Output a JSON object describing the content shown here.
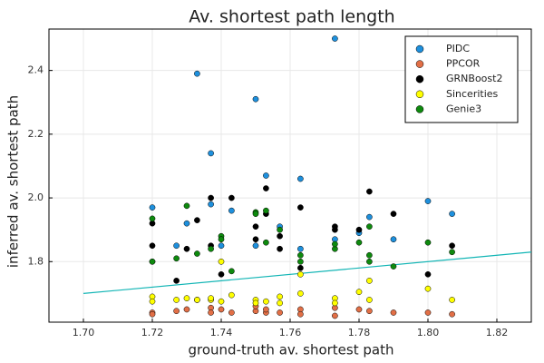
{
  "chart_data": {
    "type": "scatter",
    "title": "Av. shortest path length",
    "xlabel": "ground-truth av. shortest path",
    "ylabel": "inferred av. shortest path",
    "xlim": [
      1.69,
      1.83
    ],
    "ylim": [
      1.61,
      2.53
    ],
    "xticks": [
      1.7,
      1.72,
      1.74,
      1.76,
      1.78,
      1.8,
      1.82
    ],
    "xtick_labels": [
      "1.70",
      "1.72",
      "1.74",
      "1.76",
      "1.78",
      "1.80",
      "1.82"
    ],
    "yticks": [
      1.8,
      2.0,
      2.2,
      2.4
    ],
    "ytick_labels": [
      "1.8",
      "2.0",
      "2.2",
      "2.4"
    ],
    "grid": true,
    "legend_position": "top-right",
    "series": [
      {
        "name": "PIDC",
        "color": "#1e90dd",
        "points": [
          [
            1.72,
            1.97
          ],
          [
            1.72,
            1.8
          ],
          [
            1.727,
            1.85
          ],
          [
            1.73,
            1.92
          ],
          [
            1.733,
            2.39
          ],
          [
            1.737,
            2.14
          ],
          [
            1.737,
            1.98
          ],
          [
            1.74,
            1.85
          ],
          [
            1.743,
            1.96
          ],
          [
            1.75,
            2.31
          ],
          [
            1.75,
            1.85
          ],
          [
            1.753,
            2.07
          ],
          [
            1.757,
            1.91
          ],
          [
            1.763,
            2.06
          ],
          [
            1.763,
            1.84
          ],
          [
            1.773,
            2.5
          ],
          [
            1.773,
            1.87
          ],
          [
            1.78,
            1.89
          ],
          [
            1.783,
            1.94
          ],
          [
            1.79,
            1.87
          ],
          [
            1.8,
            1.99
          ],
          [
            1.807,
            1.95
          ]
        ]
      },
      {
        "name": "PPCOR",
        "color": "#e26f46",
        "points": [
          [
            1.72,
            1.64
          ],
          [
            1.72,
            1.635
          ],
          [
            1.727,
            1.645
          ],
          [
            1.73,
            1.65
          ],
          [
            1.733,
            1.68
          ],
          [
            1.737,
            1.655
          ],
          [
            1.737,
            1.64
          ],
          [
            1.74,
            1.65
          ],
          [
            1.743,
            1.64
          ],
          [
            1.75,
            1.645
          ],
          [
            1.75,
            1.66
          ],
          [
            1.753,
            1.64
          ],
          [
            1.753,
            1.65
          ],
          [
            1.757,
            1.64
          ],
          [
            1.763,
            1.65
          ],
          [
            1.763,
            1.635
          ],
          [
            1.773,
            1.63
          ],
          [
            1.773,
            1.655
          ],
          [
            1.78,
            1.65
          ],
          [
            1.783,
            1.645
          ],
          [
            1.79,
            1.64
          ],
          [
            1.8,
            1.64
          ],
          [
            1.807,
            1.635
          ]
        ]
      },
      {
        "name": "GRNBoost2",
        "color": "#000000",
        "points": [
          [
            1.72,
            1.92
          ],
          [
            1.72,
            1.85
          ],
          [
            1.727,
            1.74
          ],
          [
            1.73,
            1.84
          ],
          [
            1.733,
            1.93
          ],
          [
            1.737,
            2.0
          ],
          [
            1.737,
            1.85
          ],
          [
            1.74,
            1.76
          ],
          [
            1.743,
            2.0
          ],
          [
            1.75,
            1.91
          ],
          [
            1.75,
            1.87
          ],
          [
            1.753,
            2.03
          ],
          [
            1.753,
            1.95
          ],
          [
            1.757,
            1.84
          ],
          [
            1.757,
            1.88
          ],
          [
            1.763,
            1.97
          ],
          [
            1.763,
            1.78
          ],
          [
            1.773,
            1.91
          ],
          [
            1.773,
            1.9
          ],
          [
            1.78,
            1.9
          ],
          [
            1.783,
            2.02
          ],
          [
            1.79,
            1.95
          ],
          [
            1.8,
            1.76
          ],
          [
            1.807,
            1.85
          ]
        ]
      },
      {
        "name": "Sincerities",
        "color": "#ffff00",
        "points": [
          [
            1.72,
            1.69
          ],
          [
            1.72,
            1.675
          ],
          [
            1.727,
            1.68
          ],
          [
            1.73,
            1.685
          ],
          [
            1.733,
            1.68
          ],
          [
            1.737,
            1.68
          ],
          [
            1.737,
            1.685
          ],
          [
            1.74,
            1.675
          ],
          [
            1.74,
            1.8
          ],
          [
            1.743,
            1.695
          ],
          [
            1.75,
            1.68
          ],
          [
            1.75,
            1.67
          ],
          [
            1.753,
            1.675
          ],
          [
            1.757,
            1.69
          ],
          [
            1.757,
            1.67
          ],
          [
            1.763,
            1.76
          ],
          [
            1.763,
            1.7
          ],
          [
            1.773,
            1.685
          ],
          [
            1.773,
            1.67
          ],
          [
            1.78,
            1.705
          ],
          [
            1.783,
            1.74
          ],
          [
            1.783,
            1.68
          ],
          [
            1.8,
            1.715
          ],
          [
            1.807,
            1.68
          ]
        ]
      },
      {
        "name": "Genie3",
        "color": "#0e8a0e",
        "points": [
          [
            1.72,
            1.935
          ],
          [
            1.72,
            1.8
          ],
          [
            1.727,
            1.81
          ],
          [
            1.73,
            1.975
          ],
          [
            1.733,
            1.825
          ],
          [
            1.737,
            1.84
          ],
          [
            1.74,
            1.88
          ],
          [
            1.74,
            1.87
          ],
          [
            1.743,
            1.77
          ],
          [
            1.75,
            1.955
          ],
          [
            1.75,
            1.95
          ],
          [
            1.753,
            1.96
          ],
          [
            1.753,
            1.86
          ],
          [
            1.757,
            1.9
          ],
          [
            1.763,
            1.8
          ],
          [
            1.763,
            1.82
          ],
          [
            1.773,
            1.84
          ],
          [
            1.773,
            1.855
          ],
          [
            1.78,
            1.86
          ],
          [
            1.783,
            1.91
          ],
          [
            1.783,
            1.82
          ],
          [
            1.783,
            1.8
          ],
          [
            1.79,
            1.785
          ],
          [
            1.8,
            1.86
          ],
          [
            1.807,
            1.83
          ]
        ]
      }
    ],
    "fit_line": {
      "color": "#12b5b5",
      "x": [
        1.7,
        1.83
      ],
      "y": [
        1.7,
        1.83
      ]
    }
  }
}
